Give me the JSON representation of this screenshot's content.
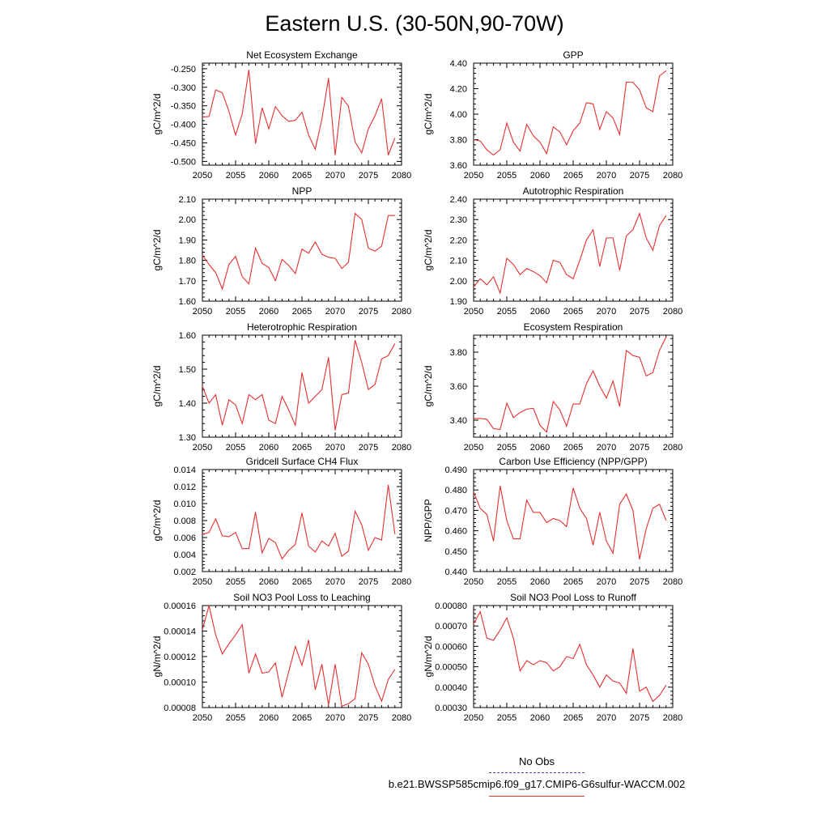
{
  "figure_title": "Eastern U.S. (30-50N,90-70W)",
  "legend": {
    "obs_label": "No Obs",
    "case_label": "b.e21.BWSSP585cmip6.f09_g17.CMIP6-G6sulfur-WACCM.002",
    "case_color": "#e53030",
    "obs_color": "#4444cc"
  },
  "chart_data": [
    {
      "type": "line",
      "title": "Net Ecosystem Exchange",
      "ylabel": "gC/m^2/d",
      "xlim": [
        2050,
        2080
      ],
      "ylim": [
        -0.51,
        -0.235
      ],
      "yticks": [
        -0.25,
        -0.3,
        -0.35,
        -0.4,
        -0.45,
        -0.5
      ],
      "ytick_labels": [
        "-0.250",
        "-0.300",
        "-0.350",
        "-0.400",
        "-0.450",
        "-0.500"
      ],
      "xticks": [
        2050,
        2055,
        2060,
        2065,
        2070,
        2075,
        2080
      ],
      "x": [
        2050,
        2051,
        2052,
        2053,
        2054,
        2055,
        2056,
        2057,
        2058,
        2059,
        2060,
        2061,
        2062,
        2063,
        2064,
        2065,
        2066,
        2067,
        2068,
        2069,
        2070,
        2071,
        2072,
        2073,
        2074,
        2075,
        2076,
        2077,
        2078,
        2079
      ],
      "values": [
        -0.38,
        -0.379,
        -0.307,
        -0.315,
        -0.365,
        -0.429,
        -0.372,
        -0.253,
        -0.452,
        -0.355,
        -0.412,
        -0.352,
        -0.377,
        -0.392,
        -0.389,
        -0.367,
        -0.429,
        -0.467,
        -0.386,
        -0.275,
        -0.483,
        -0.327,
        -0.351,
        -0.447,
        -0.477,
        -0.412,
        -0.377,
        -0.331,
        -0.483,
        -0.437
      ]
    },
    {
      "type": "line",
      "title": "GPP",
      "ylabel": "gC/m^2/d",
      "xlim": [
        2050,
        2080
      ],
      "ylim": [
        3.6,
        4.4
      ],
      "yticks": [
        3.6,
        3.8,
        4.0,
        4.2,
        4.4
      ],
      "ytick_labels": [
        "3.60",
        "3.80",
        "4.00",
        "4.20",
        "4.40"
      ],
      "xticks": [
        2050,
        2055,
        2060,
        2065,
        2070,
        2075,
        2080
      ],
      "x": [
        2050,
        2051,
        2052,
        2053,
        2054,
        2055,
        2056,
        2057,
        2058,
        2059,
        2060,
        2061,
        2062,
        2063,
        2064,
        2065,
        2066,
        2067,
        2068,
        2069,
        2070,
        2071,
        2072,
        2073,
        2074,
        2075,
        2076,
        2077,
        2078,
        2079
      ],
      "values": [
        3.8,
        3.79,
        3.72,
        3.68,
        3.72,
        3.93,
        3.78,
        3.71,
        3.92,
        3.83,
        3.78,
        3.69,
        3.9,
        3.86,
        3.76,
        3.87,
        3.93,
        4.09,
        4.08,
        3.88,
        4.02,
        3.97,
        3.84,
        4.25,
        4.25,
        4.19,
        4.05,
        4.02,
        4.3,
        4.34
      ]
    },
    {
      "type": "line",
      "title": "NPP",
      "ylabel": "gC/m^2/d",
      "xlim": [
        2050,
        2080
      ],
      "ylim": [
        1.6,
        2.1
      ],
      "yticks": [
        1.6,
        1.7,
        1.8,
        1.9,
        2.0,
        2.1
      ],
      "ytick_labels": [
        "1.60",
        "1.70",
        "1.80",
        "1.90",
        "2.00",
        "2.10"
      ],
      "xticks": [
        2050,
        2055,
        2060,
        2065,
        2070,
        2075,
        2080
      ],
      "x": [
        2050,
        2051,
        2052,
        2053,
        2054,
        2055,
        2056,
        2057,
        2058,
        2059,
        2060,
        2061,
        2062,
        2063,
        2064,
        2065,
        2066,
        2067,
        2068,
        2069,
        2070,
        2071,
        2072,
        2073,
        2074,
        2075,
        2076,
        2077,
        2078,
        2079
      ],
      "values": [
        1.825,
        1.78,
        1.74,
        1.66,
        1.78,
        1.82,
        1.72,
        1.685,
        1.86,
        1.785,
        1.765,
        1.7,
        1.805,
        1.775,
        1.735,
        1.855,
        1.835,
        1.89,
        1.83,
        1.815,
        1.81,
        1.76,
        1.79,
        2.03,
        2.0,
        1.86,
        1.845,
        1.87,
        2.02,
        2.02
      ]
    },
    {
      "type": "line",
      "title": "Autotrophic Respiration",
      "ylabel": "gC/m^2/d",
      "xlim": [
        2050,
        2080
      ],
      "ylim": [
        1.9,
        2.4
      ],
      "yticks": [
        1.9,
        2.0,
        2.1,
        2.2,
        2.3,
        2.4
      ],
      "ytick_labels": [
        "1.90",
        "2.00",
        "2.10",
        "2.20",
        "2.30",
        "2.40"
      ],
      "xticks": [
        2050,
        2055,
        2060,
        2065,
        2070,
        2075,
        2080
      ],
      "x": [
        2050,
        2051,
        2052,
        2053,
        2054,
        2055,
        2056,
        2057,
        2058,
        2059,
        2060,
        2061,
        2062,
        2063,
        2064,
        2065,
        2066,
        2067,
        2068,
        2069,
        2070,
        2071,
        2072,
        2073,
        2074,
        2075,
        2076,
        2077,
        2078,
        2079
      ],
      "values": [
        1.97,
        2.01,
        1.98,
        2.02,
        1.94,
        2.11,
        2.08,
        2.03,
        2.06,
        2.045,
        2.025,
        1.99,
        2.1,
        2.09,
        2.03,
        2.01,
        2.1,
        2.2,
        2.25,
        2.07,
        2.21,
        2.21,
        2.05,
        2.22,
        2.25,
        2.33,
        2.21,
        2.15,
        2.27,
        2.32
      ]
    },
    {
      "type": "line",
      "title": "Heterotrophic Respiration",
      "ylabel": "gC/m^2/d",
      "xlim": [
        2050,
        2080
      ],
      "ylim": [
        1.3,
        1.6
      ],
      "yticks": [
        1.3,
        1.4,
        1.5,
        1.6
      ],
      "ytick_labels": [
        "1.30",
        "1.40",
        "1.50",
        "1.60"
      ],
      "xticks": [
        2050,
        2055,
        2060,
        2065,
        2070,
        2075,
        2080
      ],
      "x": [
        2050,
        2051,
        2052,
        2053,
        2054,
        2055,
        2056,
        2057,
        2058,
        2059,
        2060,
        2061,
        2062,
        2063,
        2064,
        2065,
        2066,
        2067,
        2068,
        2069,
        2070,
        2071,
        2072,
        2073,
        2074,
        2075,
        2076,
        2077,
        2078,
        2079
      ],
      "values": [
        1.45,
        1.4,
        1.425,
        1.335,
        1.41,
        1.395,
        1.34,
        1.425,
        1.41,
        1.425,
        1.35,
        1.34,
        1.42,
        1.38,
        1.335,
        1.49,
        1.4,
        1.42,
        1.44,
        1.535,
        1.32,
        1.425,
        1.43,
        1.585,
        1.52,
        1.44,
        1.455,
        1.53,
        1.54,
        1.575
      ]
    },
    {
      "type": "line",
      "title": "Ecosystem Respiration",
      "ylabel": "gC/m^2/d",
      "xlim": [
        2050,
        2080
      ],
      "ylim": [
        3.3,
        3.9
      ],
      "yticks": [
        3.4,
        3.6,
        3.8
      ],
      "ytick_labels": [
        "3.40",
        "3.60",
        "3.80"
      ],
      "xticks": [
        2050,
        2055,
        2060,
        2065,
        2070,
        2075,
        2080
      ],
      "x": [
        2050,
        2051,
        2052,
        2053,
        2054,
        2055,
        2056,
        2057,
        2058,
        2059,
        2060,
        2061,
        2062,
        2063,
        2064,
        2065,
        2066,
        2067,
        2068,
        2069,
        2070,
        2071,
        2072,
        2073,
        2074,
        2075,
        2076,
        2077,
        2078,
        2079
      ],
      "values": [
        3.41,
        3.41,
        3.405,
        3.35,
        3.345,
        3.5,
        3.415,
        3.445,
        3.465,
        3.47,
        3.37,
        3.33,
        3.51,
        3.46,
        3.365,
        3.495,
        3.495,
        3.615,
        3.69,
        3.6,
        3.53,
        3.63,
        3.48,
        3.81,
        3.78,
        3.77,
        3.66,
        3.68,
        3.81,
        3.89
      ]
    },
    {
      "type": "line",
      "title": "Gridcell Surface CH4 Flux",
      "ylabel": "gC/m^2/d",
      "xlim": [
        2050,
        2080
      ],
      "ylim": [
        0.002,
        0.014
      ],
      "yticks": [
        0.002,
        0.004,
        0.006,
        0.008,
        0.01,
        0.012,
        0.014
      ],
      "ytick_labels": [
        "0.002",
        "0.004",
        "0.006",
        "0.008",
        "0.010",
        "0.012",
        "0.014"
      ],
      "xticks": [
        2050,
        2055,
        2060,
        2065,
        2070,
        2075,
        2080
      ],
      "x": [
        2050,
        2051,
        2052,
        2053,
        2054,
        2055,
        2056,
        2057,
        2058,
        2059,
        2060,
        2061,
        2062,
        2063,
        2064,
        2065,
        2066,
        2067,
        2068,
        2069,
        2070,
        2071,
        2072,
        2073,
        2074,
        2075,
        2076,
        2077,
        2078,
        2079
      ],
      "values": [
        0.0064,
        0.0066,
        0.0082,
        0.0062,
        0.0061,
        0.0066,
        0.0047,
        0.0047,
        0.009,
        0.0042,
        0.0059,
        0.0054,
        0.0035,
        0.0045,
        0.0052,
        0.0089,
        0.005,
        0.0043,
        0.0056,
        0.005,
        0.0065,
        0.0038,
        0.0044,
        0.0091,
        0.0075,
        0.0045,
        0.006,
        0.0057,
        0.0122,
        0.0064
      ]
    },
    {
      "type": "line",
      "title": "Carbon Use Efficiency (NPP/GPP)",
      "ylabel": "NPP/GPP",
      "xlim": [
        2050,
        2080
      ],
      "ylim": [
        0.44,
        0.49
      ],
      "yticks": [
        0.44,
        0.45,
        0.46,
        0.47,
        0.48,
        0.49
      ],
      "ytick_labels": [
        "0.440",
        "0.450",
        "0.460",
        "0.470",
        "0.480",
        "0.490"
      ],
      "xticks": [
        2050,
        2055,
        2060,
        2065,
        2070,
        2075,
        2080
      ],
      "x": [
        2050,
        2051,
        2052,
        2053,
        2054,
        2055,
        2056,
        2057,
        2058,
        2059,
        2060,
        2061,
        2062,
        2063,
        2064,
        2065,
        2066,
        2067,
        2068,
        2069,
        2070,
        2071,
        2072,
        2073,
        2074,
        2075,
        2076,
        2077,
        2078,
        2079
      ],
      "values": [
        0.479,
        0.471,
        0.468,
        0.455,
        0.482,
        0.465,
        0.456,
        0.456,
        0.475,
        0.469,
        0.469,
        0.464,
        0.466,
        0.465,
        0.462,
        0.481,
        0.471,
        0.466,
        0.453,
        0.469,
        0.455,
        0.449,
        0.473,
        0.478,
        0.47,
        0.446,
        0.461,
        0.471,
        0.473,
        0.465
      ]
    },
    {
      "type": "line",
      "title": "Soil NO3 Pool Loss to Leaching",
      "ylabel": "gN/m^2/d",
      "xlim": [
        2050,
        2080
      ],
      "ylim": [
        8e-05,
        0.00016
      ],
      "yticks": [
        8e-05,
        0.0001,
        0.00012,
        0.00014,
        0.00016
      ],
      "ytick_labels": [
        "0.00008",
        "0.00010",
        "0.00012",
        "0.00014",
        "0.00016"
      ],
      "xticks": [
        2050,
        2055,
        2060,
        2065,
        2070,
        2075,
        2080
      ],
      "x": [
        2050,
        2051,
        2052,
        2053,
        2054,
        2055,
        2056,
        2057,
        2058,
        2059,
        2060,
        2061,
        2062,
        2063,
        2064,
        2065,
        2066,
        2067,
        2068,
        2069,
        2070,
        2071,
        2072,
        2073,
        2074,
        2075,
        2076,
        2077,
        2078,
        2079
      ],
      "values": [
        0.000141,
        0.00016,
        0.000137,
        0.000122,
        0.00013,
        0.000137,
        0.000145,
        0.000107,
        0.000122,
        0.000107,
        0.000108,
        0.000115,
        8.8e-05,
        0.000108,
        0.000128,
        0.000113,
        0.000133,
        9.4e-05,
        0.000114,
        8.2e-05,
        0.000114,
        8.1e-05,
        8.3e-05,
        8.7e-05,
        0.000123,
        0.000114,
        9.7e-05,
        8.5e-05,
        0.000102,
        0.00011
      ]
    },
    {
      "type": "line",
      "title": "Soil NO3 Pool Loss to Runoff",
      "ylabel": "gN/m^2/d",
      "xlim": [
        2050,
        2080
      ],
      "ylim": [
        0.0003,
        0.0008
      ],
      "yticks": [
        0.0003,
        0.0004,
        0.0005,
        0.0006,
        0.0007,
        0.0008
      ],
      "ytick_labels": [
        "0.00030",
        "0.00040",
        "0.00050",
        "0.00060",
        "0.00070",
        "0.00080"
      ],
      "xticks": [
        2050,
        2055,
        2060,
        2065,
        2070,
        2075,
        2080
      ],
      "x": [
        2050,
        2051,
        2052,
        2053,
        2054,
        2055,
        2056,
        2057,
        2058,
        2059,
        2060,
        2061,
        2062,
        2063,
        2064,
        2065,
        2066,
        2067,
        2068,
        2069,
        2070,
        2071,
        2072,
        2073,
        2074,
        2075,
        2076,
        2077,
        2078,
        2079
      ],
      "values": [
        0.00071,
        0.00077,
        0.00064,
        0.00063,
        0.00068,
        0.00074,
        0.00064,
        0.00048,
        0.00053,
        0.00051,
        0.00053,
        0.00052,
        0.00048,
        0.0005,
        0.00055,
        0.00054,
        0.00061,
        0.00051,
        0.00046,
        0.0004,
        0.00046,
        0.00043,
        0.00042,
        0.00037,
        0.00059,
        0.00038,
        0.0004,
        0.00033,
        0.00036,
        0.00041
      ]
    }
  ]
}
